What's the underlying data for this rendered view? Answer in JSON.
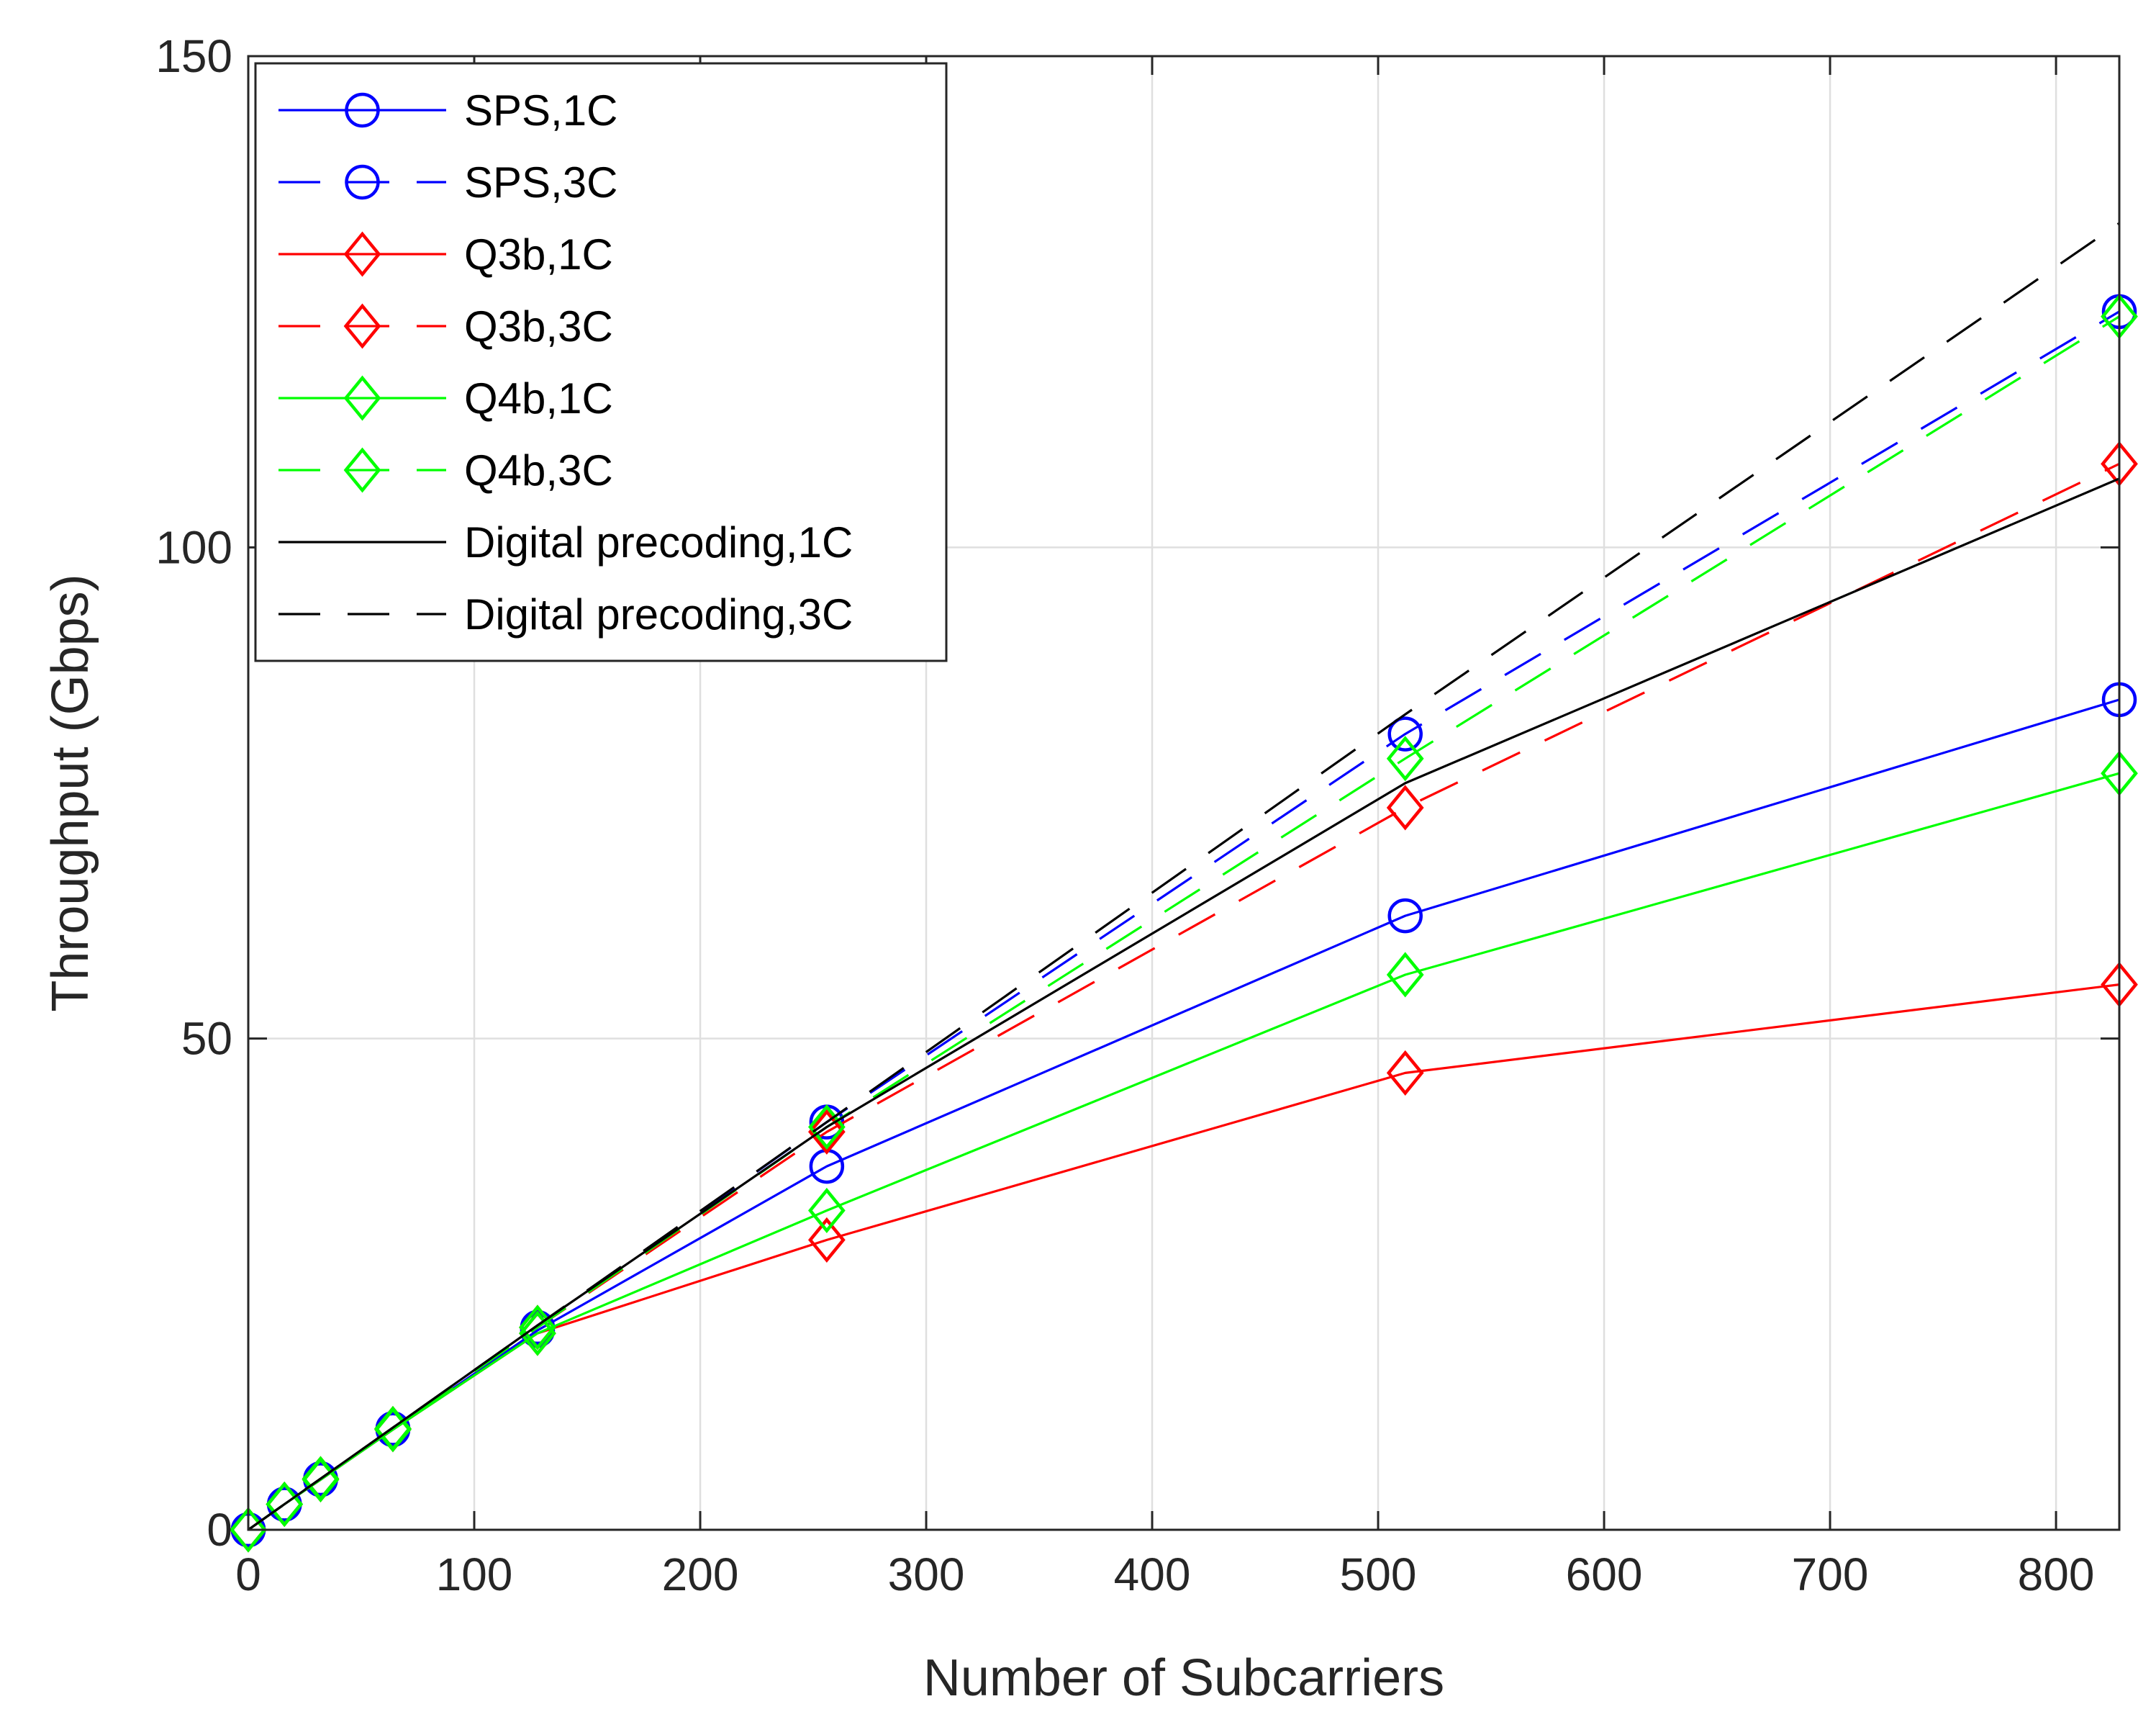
{
  "chart_data": {
    "type": "line",
    "title": "",
    "xlabel": "Number of Subcarriers",
    "ylabel": "Throughput (Gbps)",
    "xlim": [
      0,
      828
    ],
    "ylim": [
      0,
      150
    ],
    "xticks": [
      0,
      100,
      200,
      300,
      400,
      500,
      600,
      700,
      800
    ],
    "yticks": [
      0,
      50,
      100,
      150
    ],
    "grid": true,
    "legend_position": "top-left",
    "series": [
      {
        "name": "SPS,1C",
        "color": "#0000ff",
        "dash": "solid",
        "marker": "circle",
        "x": [
          0,
          16,
          32,
          64,
          128,
          256,
          512,
          828
        ],
        "y": [
          0,
          2.6,
          5.1,
          10.2,
          20.3,
          37.0,
          62.5,
          84.5
        ]
      },
      {
        "name": "SPS,3C",
        "color": "#0000ff",
        "dash": "dashed",
        "marker": "circle",
        "x": [
          0,
          16,
          32,
          64,
          128,
          256,
          512,
          828
        ],
        "y": [
          0,
          2.6,
          5.2,
          10.3,
          20.6,
          41.5,
          81.0,
          124.0
        ]
      },
      {
        "name": "Q3b,1C",
        "color": "#ff0000",
        "dash": "solid",
        "marker": "diamond",
        "x": [
          0,
          16,
          32,
          64,
          128,
          256,
          512,
          828
        ],
        "y": [
          0,
          2.6,
          5.1,
          10.2,
          20.0,
          29.5,
          46.5,
          55.5
        ]
      },
      {
        "name": "Q3b,3C",
        "color": "#ff0000",
        "dash": "dashed",
        "marker": "diamond",
        "x": [
          0,
          16,
          32,
          64,
          128,
          256,
          512,
          828
        ],
        "y": [
          0,
          2.6,
          5.2,
          10.3,
          20.6,
          40.5,
          73.5,
          108.5
        ]
      },
      {
        "name": "Q4b,1C",
        "color": "#00ff00",
        "dash": "solid",
        "marker": "diamond",
        "x": [
          0,
          16,
          32,
          64,
          128,
          256,
          512,
          828
        ],
        "y": [
          0,
          2.6,
          5.1,
          10.2,
          20.0,
          32.5,
          56.5,
          77.0
        ]
      },
      {
        "name": "Q4b,3C",
        "color": "#00ff00",
        "dash": "dashed",
        "marker": "diamond",
        "x": [
          0,
          16,
          32,
          64,
          128,
          256,
          512,
          828
        ],
        "y": [
          0,
          2.6,
          5.2,
          10.3,
          20.6,
          41.0,
          78.5,
          123.5
        ]
      },
      {
        "name": "Digital precoding,1C",
        "color": "#000000",
        "dash": "solid",
        "marker": "none",
        "x": [
          0,
          16,
          32,
          64,
          128,
          256,
          512,
          828
        ],
        "y": [
          0,
          2.6,
          5.2,
          10.4,
          20.8,
          41.0,
          76.0,
          107.0
        ]
      },
      {
        "name": "Digital precoding,3C",
        "color": "#000000",
        "dash": "dashed",
        "marker": "none",
        "x": [
          0,
          16,
          32,
          64,
          128,
          256,
          512,
          828
        ],
        "y": [
          0,
          2.6,
          5.2,
          10.4,
          20.8,
          41.5,
          83.0,
          133.0
        ]
      }
    ]
  }
}
